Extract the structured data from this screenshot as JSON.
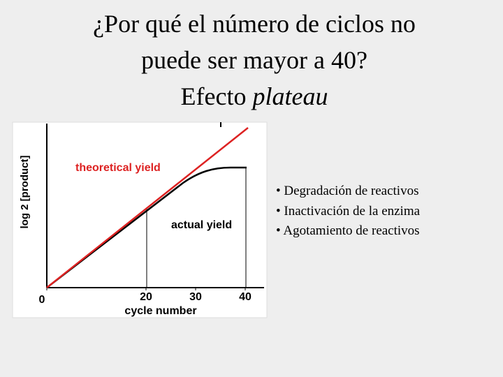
{
  "title": {
    "line1": "¿Por qué el número de ciclos no",
    "line2": "puede ser mayor a 40?",
    "line3": "Efecto",
    "line3_italic": "plateau"
  },
  "chart_data": {
    "type": "line",
    "xlabel": "cycle number",
    "ylabel": "log 2 [product]",
    "xlim": [
      0,
      44
    ],
    "xticks": [
      0,
      20,
      30,
      40
    ],
    "annotations": [
      "theoretical yield",
      "actual yield"
    ]
  },
  "bullets": [
    "• Degradación de reactivos",
    "• Inactivación de la enzima",
    "• Agotamiento de reactivos"
  ]
}
